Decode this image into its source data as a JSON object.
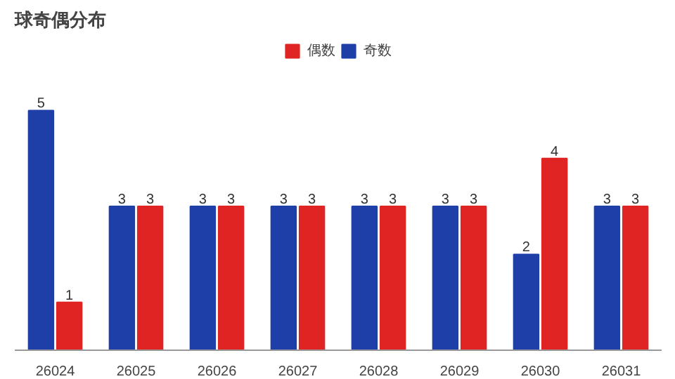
{
  "chart_data": {
    "type": "bar",
    "title": "球奇偶分布",
    "categories": [
      "26024",
      "26025",
      "26026",
      "26027",
      "26028",
      "26029",
      "26030",
      "26031"
    ],
    "series": [
      {
        "name": "奇数",
        "color": "#1f3fa8",
        "values": [
          5,
          3,
          3,
          3,
          3,
          3,
          2,
          3
        ]
      },
      {
        "name": "偶数",
        "color": "#e02424",
        "values": [
          1,
          3,
          3,
          3,
          3,
          3,
          4,
          3
        ]
      }
    ],
    "data_labels": true,
    "legend": "top",
    "grid": false,
    "tick_labels": "x"
  }
}
